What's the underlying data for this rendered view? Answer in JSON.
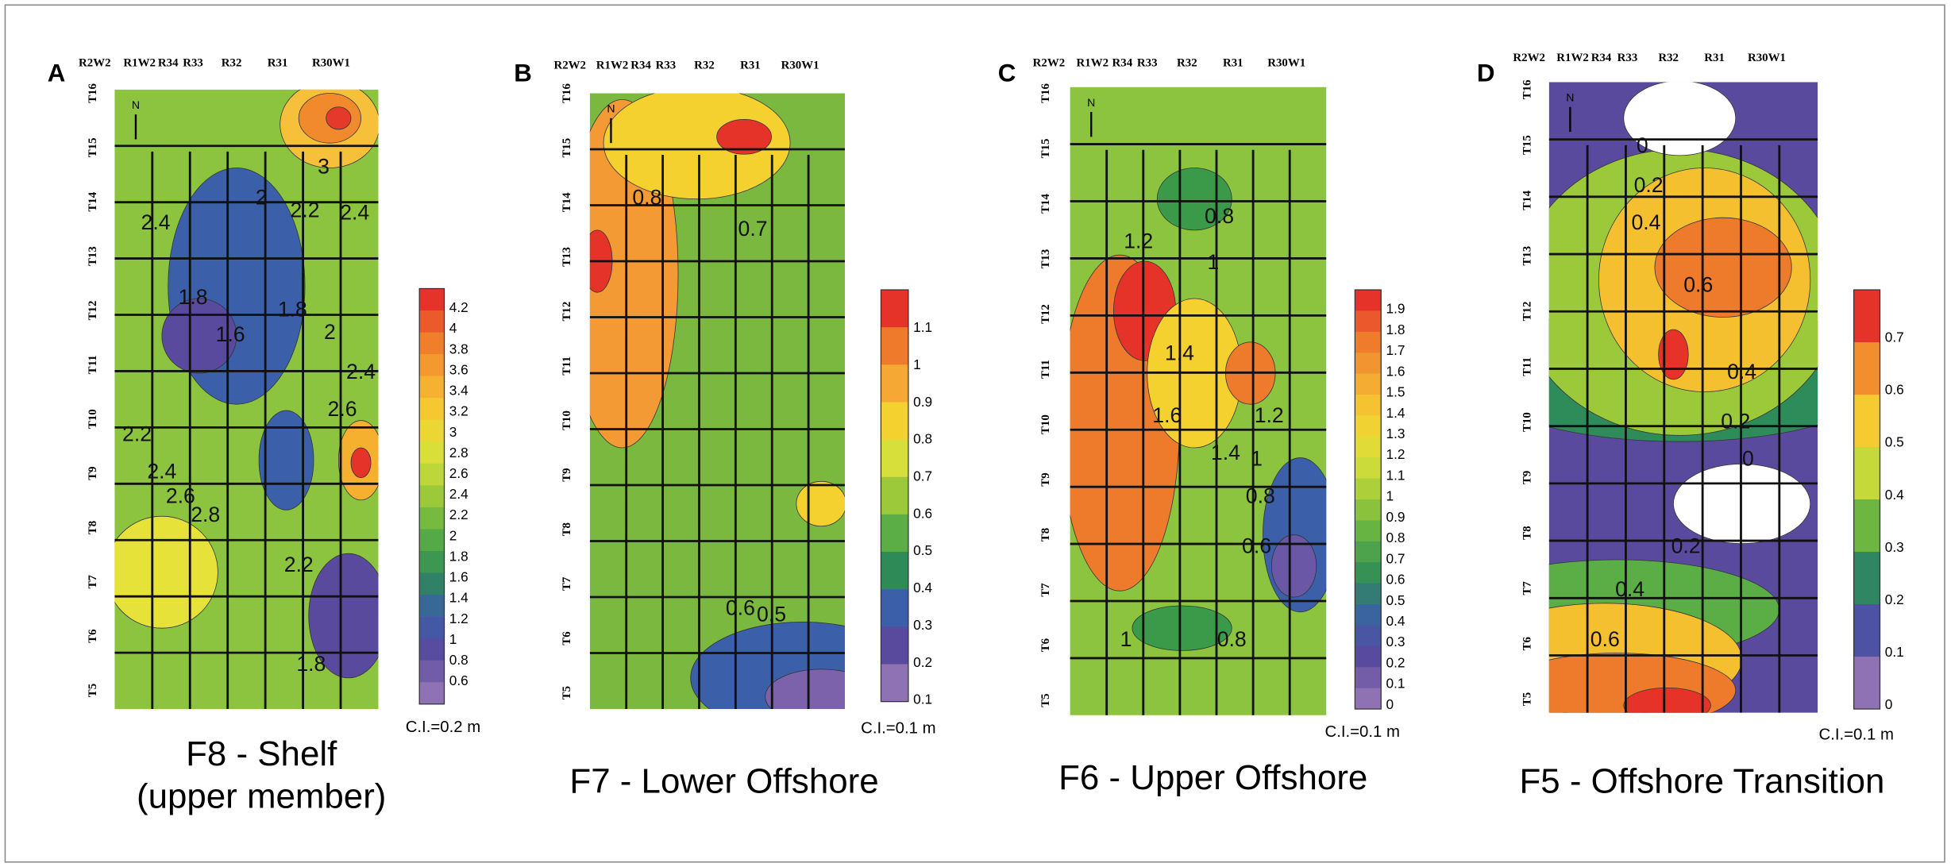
{
  "panels": [
    {
      "letter": "A",
      "ranges": [
        "R2W2",
        "R1W2",
        "R34",
        "R33",
        "R32",
        "R31",
        "R30W1"
      ],
      "townships": [
        "T16",
        "T15",
        "T14",
        "T13",
        "T12",
        "T11",
        "T10",
        "T9",
        "T8",
        "T7",
        "T6",
        "T5"
      ],
      "colorbar": [
        "4.2",
        "4",
        "3.8",
        "3.6",
        "3.4",
        "3.2",
        "3",
        "2.8",
        "2.6",
        "2.4",
        "2.2",
        "2",
        "1.8",
        "1.6",
        "1.4",
        "1.2",
        "1",
        "0.8",
        "0.6"
      ],
      "contour_labels": [
        "3",
        "2.4",
        "2",
        "2.2",
        "2.4",
        "1.8",
        "1.6",
        "1.8",
        "2",
        "2.4",
        "2.6",
        "2.2",
        "2.4",
        "2.6",
        "2.8",
        "2.2",
        "1.8"
      ],
      "ci": "C.I.=0.2 m",
      "title": [
        "F8 - Shelf",
        "(upper member)"
      ]
    },
    {
      "letter": "B",
      "ranges": [
        "R2W2",
        "R1W2",
        "R34",
        "R33",
        "R32",
        "R31",
        "R30W1"
      ],
      "townships": [
        "T16",
        "T15",
        "T14",
        "T13",
        "T12",
        "T11",
        "T10",
        "T9",
        "T8",
        "T7",
        "T6",
        "T5"
      ],
      "colorbar": [
        "1.1",
        "1",
        "0.9",
        "0.8",
        "0.7",
        "0.6",
        "0.5",
        "0.4",
        "0.3",
        "0.2",
        "0.1"
      ],
      "contour_labels": [
        "0.8",
        "0.7",
        "0.6",
        "0.5"
      ],
      "ci": "C.I.=0.1 m",
      "title": [
        "F7 - Lower Offshore"
      ]
    },
    {
      "letter": "C",
      "ranges": [
        "R2W2",
        "R1W2",
        "R34",
        "R33",
        "R32",
        "R31",
        "R30W1"
      ],
      "townships": [
        "T16",
        "T15",
        "T14",
        "T13",
        "T12",
        "T11",
        "T10",
        "T9",
        "T8",
        "T7",
        "T6",
        "T5"
      ],
      "colorbar": [
        "1.9",
        "1.8",
        "1.7",
        "1.6",
        "1.5",
        "1.4",
        "1.3",
        "1.2",
        "1.1",
        "1",
        "0.9",
        "0.8",
        "0.7",
        "0.6",
        "0.5",
        "0.4",
        "0.3",
        "0.2",
        "0.1",
        "0"
      ],
      "contour_labels": [
        "1.2",
        "0.8",
        "1",
        "1.4",
        "1.6",
        "1.4",
        "1.2",
        "1",
        "0.8",
        "0.6",
        "0.8",
        "1"
      ],
      "ci": "C.I.=0.1 m",
      "title": [
        "F6 - Upper Offshore"
      ]
    },
    {
      "letter": "D",
      "ranges": [
        "R2W2",
        "R1W2",
        "R34",
        "R33",
        "R32",
        "R31",
        "R30W1"
      ],
      "townships": [
        "T16",
        "T15",
        "T14",
        "T13",
        "T12",
        "T11",
        "T10",
        "T9",
        "T8",
        "T7",
        "T6",
        "T5"
      ],
      "colorbar": [
        "0.7",
        "0.6",
        "0.5",
        "0.4",
        "0.3",
        "0.2",
        "0.1",
        "0"
      ],
      "contour_labels": [
        "0",
        "0.2",
        "0.4",
        "0.6",
        "0.4",
        "0.2",
        "0",
        "0.2",
        "0.4",
        "0.6"
      ],
      "ci": "C.I.=0.1 m",
      "title": [
        "F5 - Offshore Transition"
      ]
    }
  ]
}
